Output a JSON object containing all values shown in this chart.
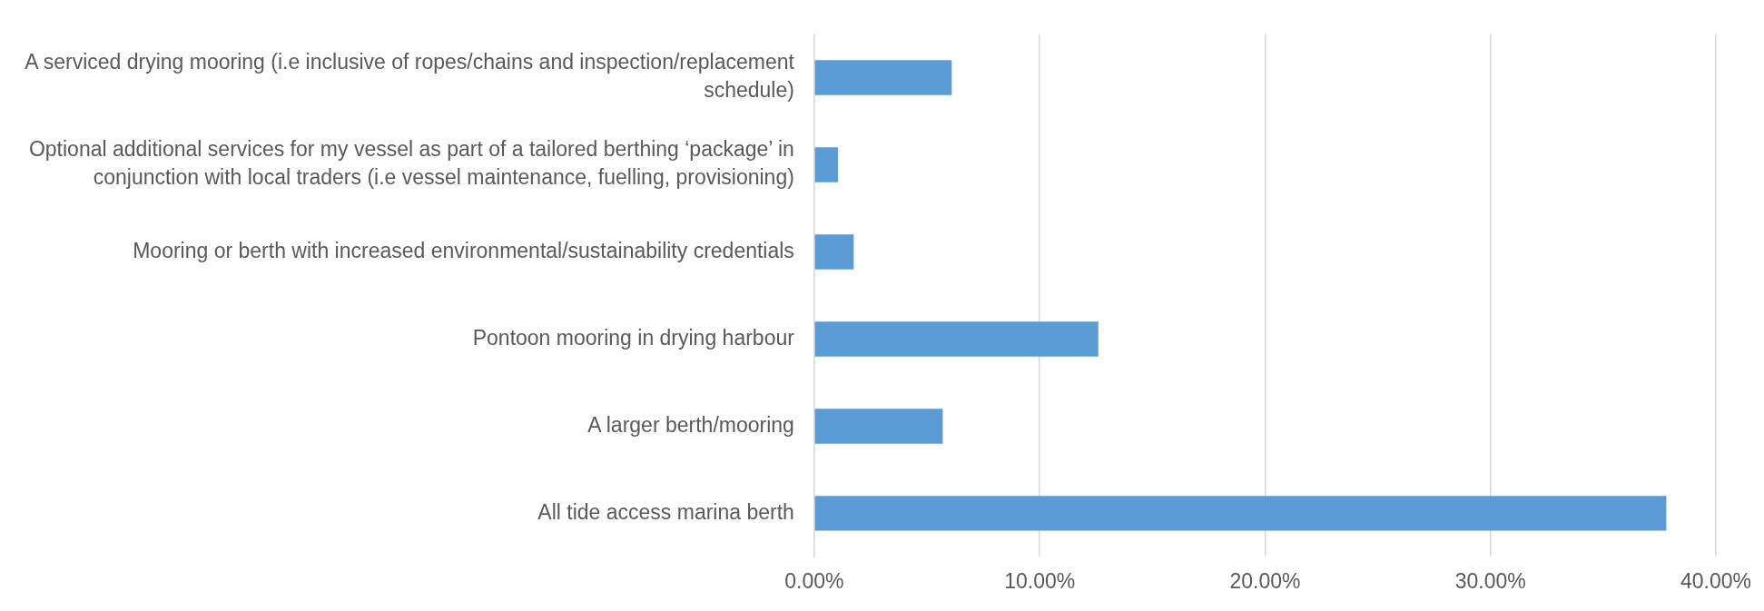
{
  "chart_data": {
    "type": "bar",
    "orientation": "horizontal",
    "categories": [
      "A serviced drying mooring (i.e inclusive of ropes/chains and inspection/replacement schedule)",
      "Optional additional services for my vessel as part of a tailored berthing ‘package’ in conjunction with local traders (i.e vessel maintenance, fuelling, provisioning)",
      "Mooring or berth with increased environmental/sustainability credentials",
      "Pontoon mooring in drying harbour",
      "A larger berth/mooring",
      "All tide access marina berth"
    ],
    "values": [
      6.1,
      1.05,
      1.75,
      12.6,
      5.7,
      37.8
    ],
    "color": "#5b9bd5",
    "xlim": [
      0,
      40
    ],
    "xticks": [
      {
        "value": 0,
        "label": "0.00%"
      },
      {
        "value": 10,
        "label": "10.00%"
      },
      {
        "value": 20,
        "label": "20.00%"
      },
      {
        "value": 30,
        "label": "30.00%"
      },
      {
        "value": 40,
        "label": "40.00%"
      }
    ],
    "grid": "x"
  }
}
